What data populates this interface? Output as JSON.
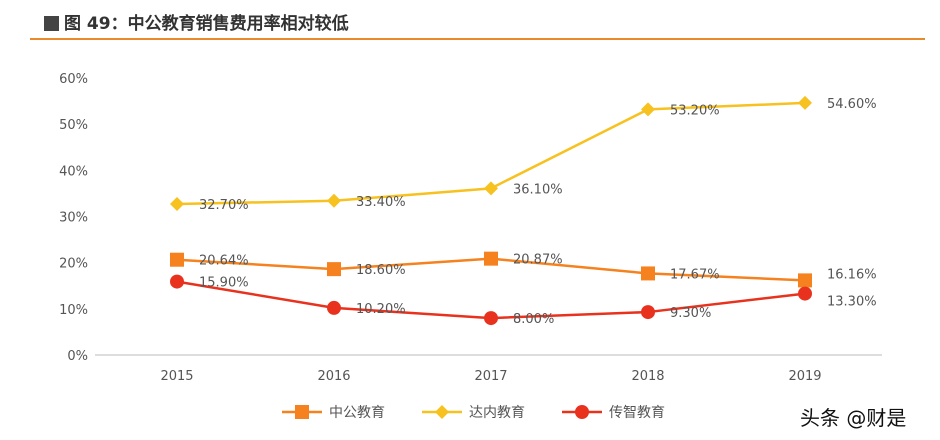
{
  "header": {
    "title": "图 49：中公教育销售费用率相对较低"
  },
  "watermark": "头条 @财是",
  "chart_data": {
    "type": "line",
    "title": "",
    "categories": [
      "2015",
      "2016",
      "2017",
      "2018",
      "2019"
    ],
    "ylim": [
      0,
      60
    ],
    "yticks": [
      "0%",
      "10%",
      "20%",
      "30%",
      "40%",
      "50%",
      "60%"
    ],
    "grid": false,
    "legend_position": "bottom",
    "series": [
      {
        "name": "中公教育",
        "color": "#f5821f",
        "marker": "square",
        "values": [
          20.64,
          18.6,
          20.87,
          17.67,
          16.16
        ],
        "labels": [
          "20.64%",
          "18.60%",
          "20.87%",
          "17.67%",
          "16.16%"
        ]
      },
      {
        "name": "达内教育",
        "color": "#f7c11f",
        "marker": "diamond",
        "values": [
          32.7,
          33.4,
          36.1,
          53.2,
          54.6
        ],
        "labels": [
          "32.70%",
          "33.40%",
          "36.10%",
          "53.20%",
          "54.60%"
        ]
      },
      {
        "name": "传智教育",
        "color": "#e8321e",
        "marker": "circle",
        "values": [
          15.9,
          10.2,
          8.0,
          9.3,
          13.3
        ],
        "labels": [
          "15.90%",
          "10.20%",
          "8.00%",
          "9.30%",
          "13.30%"
        ]
      }
    ]
  }
}
